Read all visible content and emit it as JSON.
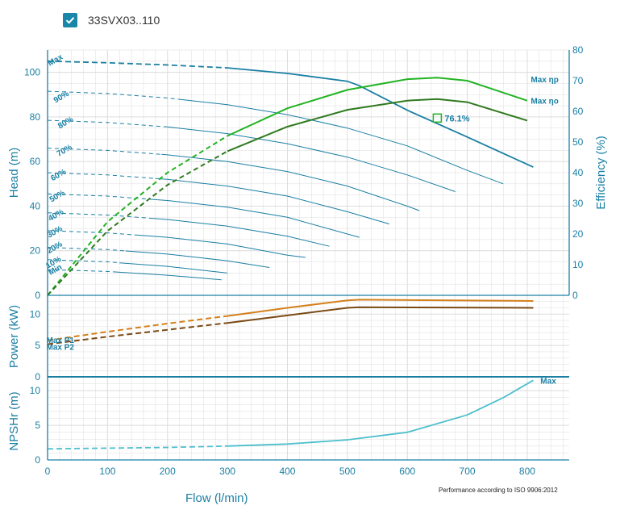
{
  "legend": {
    "label": "33SVX03..110",
    "checked": true,
    "icon": "check-icon"
  },
  "x_axis": {
    "label": "Flow (l/min)",
    "ticks": [
      "0",
      "100",
      "200",
      "300",
      "400",
      "500",
      "600",
      "700",
      "800"
    ]
  },
  "head_axis": {
    "label": "Head (m)",
    "ticks": [
      "0",
      "20",
      "40",
      "60",
      "80",
      "100"
    ]
  },
  "efficiency_axis": {
    "label": "Efficiency (%)",
    "ticks": [
      "0",
      "10",
      "20",
      "30",
      "40",
      "50",
      "60",
      "70",
      "80"
    ]
  },
  "power_axis": {
    "label": "Power (kW)",
    "ticks": [
      "0",
      "5",
      "10"
    ]
  },
  "npsh_axis": {
    "label": "NPSHr (m)",
    "ticks": [
      "0",
      "5",
      "10"
    ]
  },
  "footnote": "Performance according to ISO 9906:2012",
  "colors": {
    "head": "#1a7fa3",
    "eta_p": "#22b322",
    "eta_o": "#2f7a1f",
    "p1": "#d4801c",
    "p2": "#7a4a14",
    "npsh": "#4dbfcc",
    "grid": "#dcdcdc"
  },
  "chart_data": [
    {
      "type": "line",
      "title": "",
      "xlabel": "Flow (l/min)",
      "ylabel": "Head (m)",
      "xlim": [
        0,
        870
      ],
      "ylim": [
        0,
        110
      ],
      "y2label": "Efficiency (%)",
      "y2lim": [
        0,
        80
      ],
      "grid": true,
      "series": [
        {
          "name": "Max",
          "axis": "head",
          "x": [
            0,
            100,
            200,
            300,
            400,
            500,
            520,
            600,
            700,
            810
          ],
          "y": [
            105,
            104.3,
            103.3,
            102,
            99.5,
            96,
            94,
            83,
            71,
            57.5
          ]
        },
        {
          "name": "90%",
          "axis": "head",
          "x": [
            0,
            100,
            200,
            300,
            400,
            500,
            600,
            700,
            760
          ],
          "y": [
            91.5,
            90.5,
            88.5,
            85.5,
            81,
            75,
            67,
            56,
            50
          ]
        },
        {
          "name": "80%",
          "axis": "head",
          "x": [
            0,
            100,
            200,
            300,
            400,
            500,
            600,
            680
          ],
          "y": [
            78.5,
            77.5,
            75.5,
            72.5,
            68,
            62,
            54,
            46.5
          ]
        },
        {
          "name": "70%",
          "axis": "head",
          "x": [
            0,
            100,
            200,
            300,
            400,
            500,
            600,
            620
          ],
          "y": [
            66,
            65,
            63,
            60,
            55.5,
            49,
            40,
            38
          ]
        },
        {
          "name": "60%",
          "axis": "head",
          "x": [
            0,
            100,
            200,
            300,
            400,
            500,
            570
          ],
          "y": [
            55,
            54,
            52,
            49,
            44.5,
            37.5,
            32
          ]
        },
        {
          "name": "50%",
          "axis": "head",
          "x": [
            0,
            100,
            200,
            300,
            400,
            520
          ],
          "y": [
            45.5,
            44.5,
            42.5,
            39.5,
            35,
            26
          ]
        },
        {
          "name": "40%",
          "axis": "head",
          "x": [
            0,
            100,
            200,
            300,
            400,
            470
          ],
          "y": [
            37,
            36,
            34,
            31,
            26.5,
            22
          ]
        },
        {
          "name": "30%",
          "axis": "head",
          "x": [
            0,
            100,
            200,
            300,
            400,
            430
          ],
          "y": [
            29,
            28,
            26,
            23,
            18,
            17
          ]
        },
        {
          "name": "20%",
          "axis": "head",
          "x": [
            0,
            100,
            200,
            300,
            370
          ],
          "y": [
            21.5,
            20.5,
            18.5,
            15.5,
            12.5
          ]
        },
        {
          "name": "10%",
          "axis": "head",
          "x": [
            0,
            100,
            200,
            300
          ],
          "y": [
            16,
            15,
            13,
            10
          ]
        },
        {
          "name": "Min",
          "axis": "head",
          "x": [
            0,
            100,
            200,
            290
          ],
          "y": [
            11.5,
            10.7,
            9,
            7
          ]
        },
        {
          "name": "Max ηp",
          "axis": "efficiency",
          "x": [
            0,
            100,
            200,
            300,
            400,
            500,
            600,
            650,
            700,
            800
          ],
          "y": [
            0,
            24,
            40,
            52,
            61,
            67,
            70.5,
            71,
            70,
            63.5
          ]
        },
        {
          "name": "Max ηo",
          "axis": "efficiency",
          "x": [
            0,
            100,
            200,
            300,
            400,
            500,
            600,
            650,
            700,
            800
          ],
          "y": [
            0,
            21,
            36,
            47,
            55,
            60.5,
            63.5,
            64,
            63,
            57
          ]
        }
      ],
      "annotations": [
        {
          "text": "76.1%",
          "x": 650,
          "y": 79.5
        }
      ]
    },
    {
      "type": "line",
      "title": "",
      "xlabel": "Flow (l/min)",
      "ylabel": "Power (kW)",
      "xlim": [
        0,
        870
      ],
      "ylim": [
        0,
        13
      ],
      "grid": true,
      "series": [
        {
          "name": "Max P1",
          "x": [
            0,
            100,
            200,
            300,
            400,
            500,
            520,
            810
          ],
          "y": [
            5.8,
            7.2,
            8.5,
            9.7,
            11,
            12.2,
            12.3,
            12.1
          ]
        },
        {
          "name": "Max P2",
          "x": [
            0,
            100,
            200,
            300,
            400,
            500,
            520,
            810
          ],
          "y": [
            5.2,
            6.4,
            7.5,
            8.6,
            9.8,
            11,
            11.1,
            11
          ]
        }
      ]
    },
    {
      "type": "line",
      "title": "",
      "xlabel": "Flow (l/min)",
      "ylabel": "NPSHr (m)",
      "xlim": [
        0,
        870
      ],
      "ylim": [
        0,
        12
      ],
      "grid": true,
      "series": [
        {
          "name": "Max",
          "x": [
            0,
            100,
            200,
            300,
            400,
            500,
            600,
            700,
            760,
            810
          ],
          "y": [
            1.6,
            1.7,
            1.8,
            2.0,
            2.3,
            2.9,
            4.0,
            6.5,
            9.0,
            11.5
          ]
        }
      ]
    }
  ]
}
